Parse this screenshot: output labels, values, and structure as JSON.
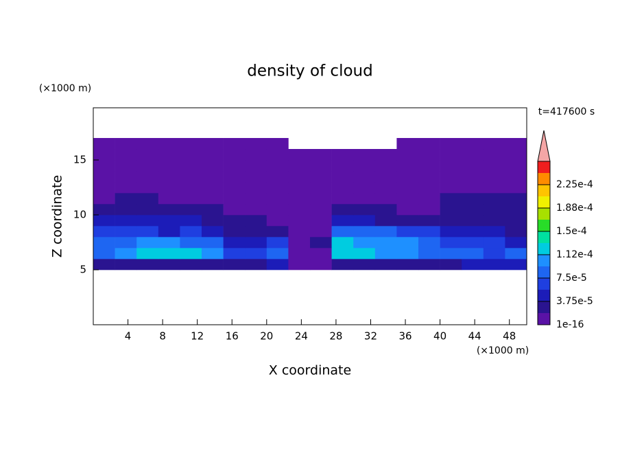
{
  "chart_data": {
    "type": "contour",
    "title": "density of cloud",
    "xlabel": "X coordinate",
    "ylabel": "Z coordinate",
    "xunit": "(×1000 m)",
    "yunit": "(×1000 m)",
    "time_label": "t=417600 s",
    "xlim": [
      0,
      50
    ],
    "ylim": [
      0,
      19.75
    ],
    "xticks": [
      4,
      8,
      12,
      16,
      20,
      24,
      28,
      32,
      36,
      40,
      44,
      48
    ],
    "yticks": [
      5,
      10,
      15
    ],
    "x_edges": [
      0,
      2.5,
      5,
      7.5,
      10,
      12.5,
      15,
      17.5,
      20,
      22.5,
      25,
      27.5,
      30,
      32.5,
      35,
      37.5,
      40,
      42.5,
      45,
      47.5,
      50
    ],
    "z_edges": [
      5,
      6,
      7,
      8,
      9,
      10,
      11,
      12,
      13,
      14,
      15,
      16,
      17
    ],
    "density": [
      [
        3e-05,
        3e-05,
        2e-05,
        2e-05,
        2e-05,
        2e-05,
        2e-05,
        3e-05,
        4e-05,
        5e-06,
        5e-06,
        3e-05,
        3e-05,
        2e-05,
        2e-05,
        3e-05,
        3e-05,
        4e-05,
        4e-05,
        4e-05
      ],
      [
        9e-05,
        0.0001,
        0.00012,
        0.00013,
        0.00012,
        0.0001,
        6e-05,
        6e-05,
        8e-05,
        5e-06,
        5e-06,
        0.00013,
        0.00012,
        0.0001,
        0.00011,
        8e-05,
        9e-05,
        8e-05,
        7e-05,
        8e-05
      ],
      [
        8e-05,
        9e-05,
        0.0001,
        0.0001,
        9e-05,
        8e-05,
        4e-05,
        4e-05,
        7e-05,
        5e-06,
        2e-05,
        0.00012,
        0.00011,
        0.0001,
        0.00011,
        8e-05,
        7e-05,
        6e-05,
        6e-05,
        5e-05
      ],
      [
        6e-05,
        7e-05,
        6e-05,
        5e-05,
        7e-05,
        5e-05,
        3e-05,
        3e-05,
        2e-05,
        5e-06,
        1e-05,
        8e-05,
        9e-05,
        8e-05,
        7e-05,
        6e-05,
        5e-05,
        4e-05,
        4e-05,
        3e-05
      ],
      [
        4e-05,
        5e-05,
        4e-05,
        5e-05,
        4e-05,
        3e-05,
        2e-05,
        2e-05,
        1e-05,
        5e-06,
        5e-06,
        4e-05,
        4e-05,
        3e-05,
        3e-05,
        3e-05,
        2e-05,
        3e-05,
        2e-05,
        2e-05
      ],
      [
        2e-05,
        2e-05,
        3e-05,
        2e-05,
        2e-05,
        2e-05,
        1e-05,
        1e-05,
        1e-05,
        5e-06,
        5e-06,
        2e-05,
        2e-05,
        2e-05,
        1e-05,
        1e-05,
        2e-05,
        2e-05,
        2e-05,
        2e-05
      ],
      [
        1e-05,
        2e-05,
        2e-05,
        1e-05,
        1e-05,
        1e-05,
        5e-06,
        5e-06,
        5e-06,
        5e-06,
        5e-06,
        1e-05,
        1e-05,
        5e-06,
        5e-06,
        1e-05,
        2e-05,
        2e-05,
        2e-05,
        2e-05
      ],
      [
        5e-06,
        5e-06,
        5e-06,
        5e-06,
        5e-06,
        5e-06,
        5e-06,
        5e-06,
        5e-06,
        5e-06,
        5e-06,
        5e-06,
        5e-06,
        5e-06,
        5e-06,
        5e-06,
        5e-06,
        5e-06,
        5e-06,
        5e-06
      ],
      [
        5e-06,
        5e-06,
        5e-06,
        5e-06,
        5e-06,
        5e-06,
        5e-06,
        5e-06,
        5e-06,
        5e-06,
        5e-06,
        5e-06,
        5e-06,
        5e-06,
        5e-06,
        5e-06,
        5e-06,
        5e-06,
        5e-06,
        5e-06
      ],
      [
        5e-06,
        5e-06,
        5e-06,
        5e-06,
        5e-06,
        5e-06,
        5e-06,
        5e-06,
        5e-06,
        5e-06,
        5e-06,
        5e-06,
        5e-06,
        5e-06,
        5e-06,
        5e-06,
        5e-06,
        5e-06,
        5e-06,
        5e-06
      ],
      [
        5e-06,
        5e-06,
        5e-06,
        5e-06,
        5e-06,
        5e-06,
        5e-06,
        5e-06,
        5e-06,
        5e-06,
        5e-06,
        5e-06,
        5e-06,
        5e-06,
        5e-06,
        5e-06,
        5e-06,
        5e-06,
        5e-06,
        5e-06
      ],
      [
        5e-06,
        5e-06,
        5e-06,
        5e-06,
        5e-06,
        5e-06,
        5e-06,
        5e-06,
        5e-06,
        null,
        null,
        null,
        null,
        null,
        5e-06,
        5e-06,
        5e-06,
        5e-06,
        5e-06,
        5e-06
      ]
    ],
    "levels": [
      1e-16,
      1.875e-05,
      3.75e-05,
      5.625e-05,
      7.5e-05,
      9.375e-05,
      0.0001125,
      0.00013125,
      0.00015,
      0.00016875,
      0.0001875,
      0.00020625,
      0.000225,
      0.00024375
    ],
    "colors": [
      "#5a12a6",
      "#2a1490",
      "#1c1cb8",
      "#1f3fe0",
      "#1e66f2",
      "#1e90ff",
      "#00cce0",
      "#00e0a0",
      "#28dc28",
      "#a8e000",
      "#f0f000",
      "#ffc400",
      "#ff8c00",
      "#f01e1e"
    ],
    "overflow_color": "#f4a6a6",
    "cticks": [
      1e-16,
      {
        "value": 3.75e-05,
        "label": "3.75e-5"
      },
      {
        "value": 7.5e-05,
        "label": "7.5e-5"
      },
      {
        "value": 0.0001125,
        "label": "1.12e-4"
      },
      {
        "value": 0.00015,
        "label": "1.5e-4"
      },
      {
        "value": 0.0001875,
        "label": "1.88e-4"
      },
      {
        "value": 0.000225,
        "label": "2.25e-4"
      }
    ]
  }
}
